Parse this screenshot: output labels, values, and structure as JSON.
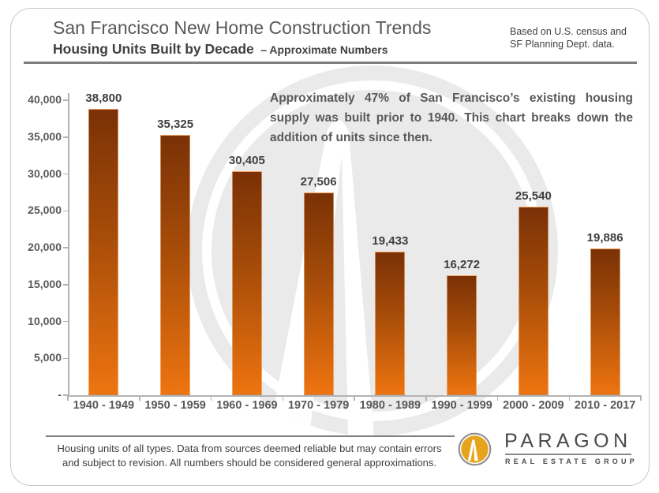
{
  "header": {
    "title": "San Francisco New Home Construction Trends",
    "subtitle": "Housing Units Built by Decade",
    "subtitle_suffix": "– Approximate Numbers",
    "source_line1": "Based on  U.S. census and",
    "source_line2": "SF Planning Dept. data."
  },
  "annotation": "Approximately 47% of San Francisco’s existing housing supply was built prior to 1940. This chart breaks down the addition of units since then.",
  "chart_data": {
    "type": "bar",
    "title": "Housing Units Built by Decade – Approximate Numbers",
    "categories": [
      "1940 - 1949",
      "1950 - 1959",
      "1960 - 1969",
      "1970 - 1979",
      "1980 - 1989",
      "1990 - 1999",
      "2000 - 2009",
      "2010 - 2017"
    ],
    "values": [
      38800,
      35325,
      30405,
      27506,
      19433,
      16272,
      25540,
      19886
    ],
    "value_labels": [
      "38,800",
      "35,325",
      "30,405",
      "27,506",
      "19,433",
      "16,272",
      "25,540",
      "19,886"
    ],
    "xlabel": "",
    "ylabel": "",
    "ylim": [
      0,
      40000
    ],
    "y_tick_step": 5000,
    "y_tick_labels": [
      "-",
      "5,000",
      "10,000",
      "15,000",
      "20,000",
      "25,000",
      "30,000",
      "35,000",
      "40,000"
    ],
    "grid": false,
    "legend": null,
    "bar_color_top": "#7a3106",
    "bar_color_bottom": "#ee7410"
  },
  "footer": {
    "disclaimer_line1": "Housing units of all types. Data from sources deemed reliable but may contain errors",
    "disclaimer_line2": "and subject to revision. All numbers should be considered general approximations.",
    "brand_name": "PARAGON",
    "brand_subtitle": "REAL ESTATE GROUP"
  },
  "colors": {
    "title_text": "#595959",
    "subtitle_text": "#404040",
    "axis_line": "#b3b3b3",
    "watermark_gray": "#eaeaea",
    "logo_gold": "#e6a41c",
    "divider_gray": "#7f7f7f"
  }
}
